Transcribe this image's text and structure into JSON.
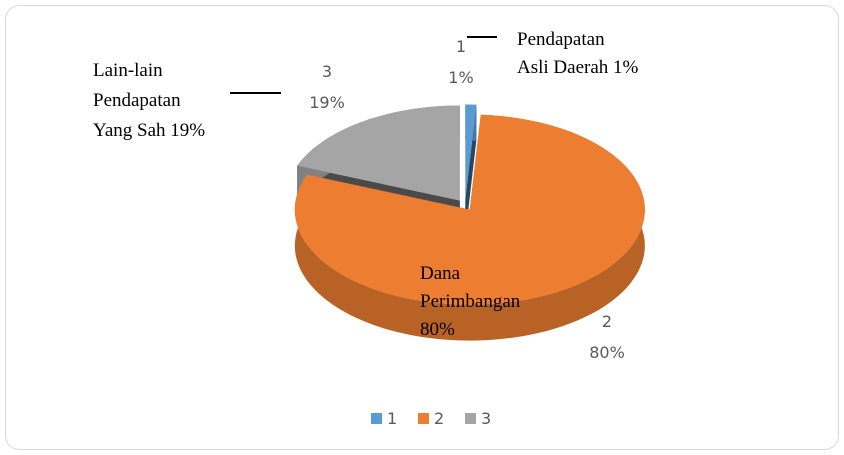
{
  "chart_data": {
    "type": "pie",
    "categories": [
      "1",
      "2",
      "3"
    ],
    "values": [
      1,
      80,
      19
    ],
    "value_labels": [
      "1%",
      "80%",
      "19%"
    ],
    "colors": [
      "#5b9bd5",
      "#ed7d31",
      "#a5a5a5"
    ],
    "annotations": [
      [
        "Pendapatan",
        "Asli Daerah 1%"
      ],
      [
        "Dana",
        "Perimbangan",
        "80%"
      ],
      [
        "Lain-lain",
        "Pendapatan",
        "Yang Sah 19%"
      ]
    ],
    "legend": "bottom"
  }
}
